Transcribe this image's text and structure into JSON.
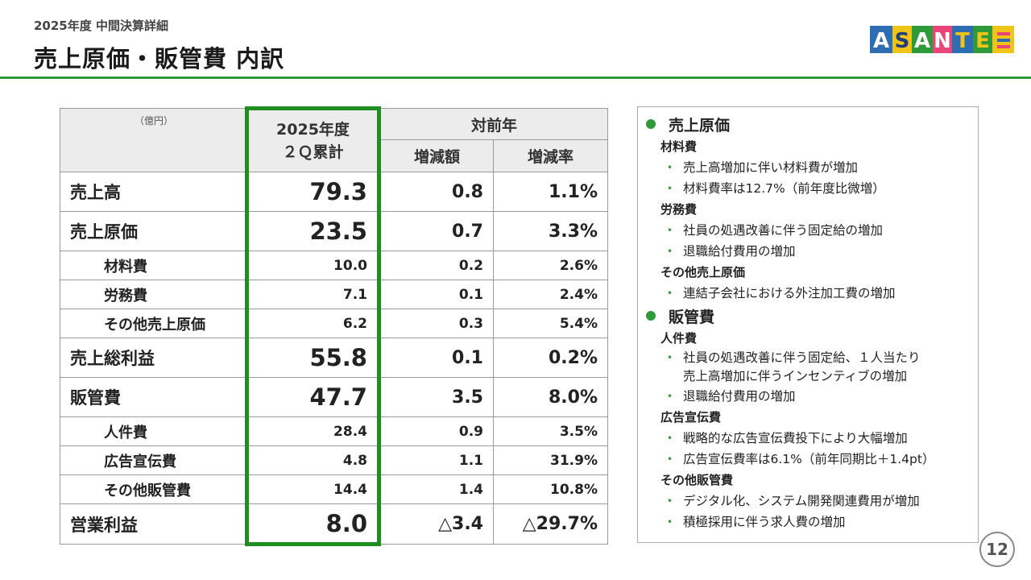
{
  "header": {
    "subtitle": "2025年度 中間決算詳細",
    "title": "売上原価・販管費 内訳",
    "logo_text": "ASANTE"
  },
  "table": {
    "unit": "（億円）",
    "col_current_line1": "2025年度",
    "col_current_line2": "２Ｑ累計",
    "col_group": "対前年",
    "col_diff": "増減額",
    "col_rate": "増減率",
    "rows": [
      {
        "label": "売上高",
        "value": "79.3",
        "diff": "0.8",
        "rate": "1.1%"
      },
      {
        "label": "売上原価",
        "value": "23.5",
        "diff": "0.7",
        "rate": "3.3%"
      },
      {
        "label": "材料費",
        "value": "10.0",
        "diff": "0.2",
        "rate": "2.6%"
      },
      {
        "label": "労務費",
        "value": "7.1",
        "diff": "0.1",
        "rate": "2.4%"
      },
      {
        "label": "その他売上原価",
        "value": "6.2",
        "diff": "0.3",
        "rate": "5.4%"
      },
      {
        "label": "売上総利益",
        "value": "55.8",
        "diff": "0.1",
        "rate": "0.2%"
      },
      {
        "label": "販管費",
        "value": "47.7",
        "diff": "3.5",
        "rate": "8.0%"
      },
      {
        "label": "人件費",
        "value": "28.4",
        "diff": "0.9",
        "rate": "3.5%"
      },
      {
        "label": "広告宣伝費",
        "value": "4.8",
        "diff": "1.1",
        "rate": "31.9%"
      },
      {
        "label": "その他販管費",
        "value": "14.4",
        "diff": "1.4",
        "rate": "10.8%"
      },
      {
        "label": "営業利益",
        "value": "8.0",
        "diff": "△3.4",
        "rate": "△29.7%"
      }
    ]
  },
  "notes": {
    "cogs": {
      "title": "売上原価",
      "material": {
        "label": "材料費",
        "items": [
          "売上高増加に伴い材料費が増加",
          "材料費率は12.7%（前年度比微増）"
        ]
      },
      "labor": {
        "label": "労務費",
        "items": [
          "社員の処遇改善に伴う固定給の増加",
          "退職給付費用の増加"
        ]
      },
      "other": {
        "label": "その他売上原価",
        "items": [
          "連結子会社における外注加工費の増加"
        ]
      }
    },
    "sga": {
      "title": "販管費",
      "personnel": {
        "label": "人件費",
        "item1_line1": "社員の処遇改善に伴う固定給、１人当たり",
        "item1_line2": "売上高増加に伴うインセンティブの増加",
        "item2": "退職給付費用の増加"
      },
      "ad": {
        "label": "広告宣伝費",
        "items": [
          "戦略的な広告宣伝費投下により大幅増加",
          "広告宣伝費率は6.1%（前年同期比＋1.4pt）"
        ]
      },
      "other": {
        "label": "その他販管費",
        "items": [
          "デジタル化、システム開発関連費用が増加",
          "積極採用に伴う求人費の増加"
        ]
      }
    }
  },
  "page_number": "12"
}
